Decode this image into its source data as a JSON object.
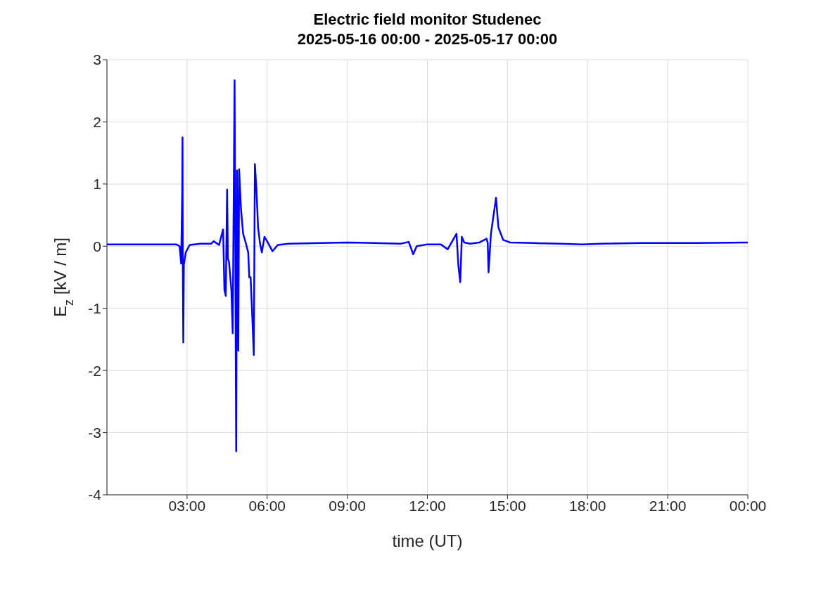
{
  "chart_data": {
    "type": "line",
    "title": "Electric field monitor Studenec",
    "subtitle": "2025-05-16 00:00 - 2025-05-17 00:00",
    "xlabel": "time (UT)",
    "ylabel": "E$_{z}$ [kV / m]",
    "x": [
      0,
      1,
      2,
      2.6,
      2.72,
      2.78,
      2.82,
      2.83,
      2.84,
      2.86,
      2.88,
      2.95,
      3.1,
      3.5,
      3.9,
      4.0,
      4.1,
      4.2,
      4.35,
      4.4,
      4.45,
      4.5,
      4.53,
      4.57,
      4.6,
      4.66,
      4.71,
      4.78,
      4.84,
      4.87,
      4.92,
      4.95,
      5.02,
      5.1,
      5.2,
      5.29,
      5.33,
      5.38,
      5.44,
      5.5,
      5.54,
      5.6,
      5.66,
      5.73,
      5.8,
      5.9,
      5.97,
      6.2,
      6.4,
      6.8,
      8,
      9,
      10,
      11,
      11.3,
      11.47,
      11.6,
      12,
      12.5,
      12.76,
      13.09,
      13.16,
      13.23,
      13.29,
      13.38,
      13.6,
      13.95,
      14.22,
      14.26,
      14.29,
      14.38,
      14.57,
      14.66,
      14.84,
      15.1,
      16,
      17,
      17.8,
      18.5,
      20,
      22,
      24
    ],
    "series": [
      {
        "color": "#0000ff",
        "values": [
          0.03,
          0.03,
          0.03,
          0.03,
          0.0,
          -0.28,
          0.9,
          1.75,
          -0.2,
          -1.55,
          -0.3,
          -0.1,
          0.02,
          0.04,
          0.04,
          0.08,
          0.05,
          0.02,
          0.27,
          -0.7,
          -0.8,
          0.91,
          -0.2,
          -0.25,
          -0.4,
          -0.7,
          -1.4,
          2.67,
          -3.3,
          1.22,
          -1.68,
          1.24,
          0.6,
          0.2,
          0.05,
          -0.1,
          -0.5,
          -0.5,
          -1.1,
          -1.75,
          1.32,
          0.9,
          0.3,
          0.05,
          -0.1,
          0.15,
          0.1,
          -0.08,
          0.02,
          0.04,
          0.05,
          0.06,
          0.05,
          0.04,
          0.07,
          -0.13,
          0.0,
          0.03,
          0.03,
          -0.05,
          0.2,
          -0.31,
          -0.58,
          0.15,
          0.06,
          0.04,
          0.06,
          0.12,
          0.05,
          -0.42,
          0.2,
          0.78,
          0.3,
          0.1,
          0.06,
          0.05,
          0.04,
          0.03,
          0.04,
          0.05,
          0.05,
          0.06
        ]
      }
    ],
    "xlim": [
      0,
      24
    ],
    "xticks": [
      {
        "value": 3,
        "label": "03:00"
      },
      {
        "value": 6,
        "label": "06:00"
      },
      {
        "value": 9,
        "label": "09:00"
      },
      {
        "value": 12,
        "label": "12:00"
      },
      {
        "value": 15,
        "label": "15:00"
      },
      {
        "value": 18,
        "label": "18:00"
      },
      {
        "value": 21,
        "label": "21:00"
      },
      {
        "value": 24,
        "label": "00:00"
      }
    ],
    "ylim": [
      -4,
      3
    ],
    "yticks": [
      -4,
      -3,
      -2,
      -1,
      0,
      1,
      2,
      3
    ],
    "grid": true,
    "legend": false
  }
}
